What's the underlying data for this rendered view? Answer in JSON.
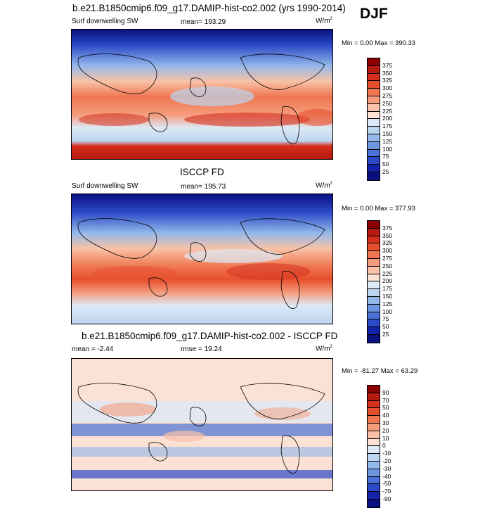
{
  "season": "DJF",
  "panels": [
    {
      "title": "b.e21.B1850cmip6.f09_g17.DAMIP-hist-co2.002 (yrs 1990-2014)",
      "left_label": "Surf downwelling SW",
      "center_label": "mean= 193.29",
      "units": "W/m",
      "units_sup": "2",
      "minmax": "Min =   0.00 Max = 390.33",
      "colorbar": {
        "levels": [
          "375",
          "350",
          "325",
          "300",
          "275",
          "250",
          "225",
          "200",
          "175",
          "150",
          "125",
          "100",
          "75",
          "50",
          "25"
        ],
        "colors": [
          "#8b0000",
          "#b51a10",
          "#d42f1d",
          "#e64f2e",
          "#ef7650",
          "#f59c7c",
          "#f9c2a8",
          "#fbe2d4",
          "#dde9f6",
          "#bcd5f0",
          "#93b8ea",
          "#6c96e0",
          "#4a72d6",
          "#2c49c6",
          "#1424a8",
          "#0a1080"
        ]
      }
    },
    {
      "title": "ISCCP FD",
      "left_label": "Surf downwelling SW",
      "center_label": "mean= 195.73",
      "units": "W/m",
      "units_sup": "2",
      "minmax": "Min =   0.00 Max = 377.93",
      "colorbar": {
        "levels": [
          "375",
          "350",
          "325",
          "300",
          "275",
          "250",
          "225",
          "200",
          "175",
          "150",
          "125",
          "100",
          "75",
          "50",
          "25"
        ],
        "colors": [
          "#8b0000",
          "#b51a10",
          "#d42f1d",
          "#e64f2e",
          "#ef7650",
          "#f59c7c",
          "#f9c2a8",
          "#fbe2d4",
          "#dde9f6",
          "#bcd5f0",
          "#93b8ea",
          "#6c96e0",
          "#4a72d6",
          "#2c49c6",
          "#1424a8",
          "#0a1080"
        ]
      }
    },
    {
      "title": "b.e21.B1850cmip6.f09_g17.DAMIP-hist-co2.002 - ISCCP FD",
      "left_label": "mean =  -2.44",
      "center_label": "rmse =  19.24",
      "units": "W/m",
      "units_sup": "2",
      "minmax": "Min = -81.27 Max =  63.29",
      "colorbar": {
        "levels": [
          "90",
          "70",
          "50",
          "40",
          "30",
          "20",
          "10",
          "0",
          "-10",
          "-20",
          "-30",
          "-40",
          "-50",
          "-70",
          "-90"
        ],
        "colors": [
          "#8b0000",
          "#b51a10",
          "#d42f1d",
          "#e64f2e",
          "#ef7650",
          "#f59c7c",
          "#f9c2a8",
          "#fbe2d4",
          "#dde9f6",
          "#bcd5f0",
          "#93b8ea",
          "#6c96e0",
          "#4a72d6",
          "#2c49c6",
          "#1424a8",
          "#0a1080"
        ]
      }
    }
  ],
  "chart_data": [
    {
      "type": "heatmap",
      "title": "b.e21.B1850cmip6.f09_g17.DAMIP-hist-co2.002 (yrs 1990-2014)",
      "variable": "Surf downwelling SW",
      "mean": 193.29,
      "min": 0.0,
      "max": 390.33,
      "units": "W/m2",
      "contour_levels": [
        25,
        50,
        75,
        100,
        125,
        150,
        175,
        200,
        225,
        250,
        275,
        300,
        325,
        350,
        375
      ]
    },
    {
      "type": "heatmap",
      "title": "ISCCP FD",
      "variable": "Surf downwelling SW",
      "mean": 195.73,
      "min": 0.0,
      "max": 377.93,
      "units": "W/m2",
      "contour_levels": [
        25,
        50,
        75,
        100,
        125,
        150,
        175,
        200,
        225,
        250,
        275,
        300,
        325,
        350,
        375
      ]
    },
    {
      "type": "heatmap",
      "title": "b.e21.B1850cmip6.f09_g17.DAMIP-hist-co2.002 - ISCCP FD",
      "mean": -2.44,
      "rmse": 19.24,
      "min": -81.27,
      "max": 63.29,
      "units": "W/m2",
      "contour_levels": [
        -90,
        -70,
        -50,
        -40,
        -30,
        -20,
        -10,
        0,
        10,
        20,
        30,
        40,
        50,
        70,
        90
      ]
    }
  ]
}
